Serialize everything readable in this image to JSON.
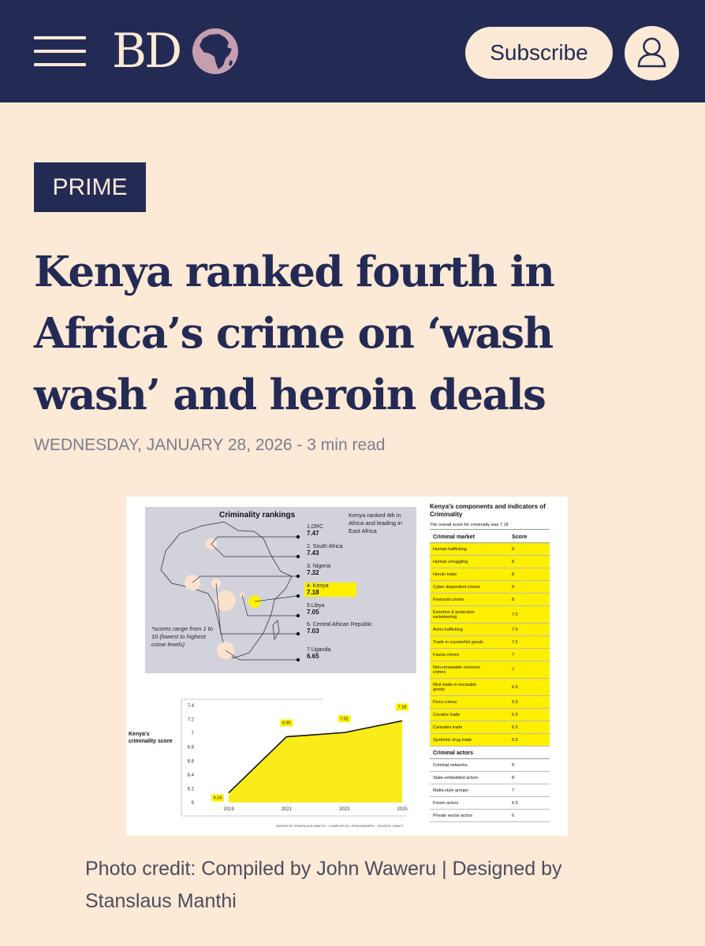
{
  "header": {
    "logo_text": "BD",
    "subscribe_label": "Subscribe",
    "menu_icon": "hamburger-icon",
    "account_icon": "user-icon",
    "colors": {
      "bar": "#232b55",
      "background": "#fce9d6"
    }
  },
  "article": {
    "badge": "PRIME",
    "headline": "Kenya ranked fourth in Africa’s crime on ‘wash wash’ and heroin deals",
    "date": "WEDNESDAY, JANUARY 28, 2026",
    "separator": " - ",
    "read_time": "3 min read",
    "photo_credit": "Photo credit: Compiled by John Waweru | Designed by Stanslaus Manthi"
  },
  "infographic": {
    "map_title": "Criminality rankings",
    "map_note": "Kenya ranked 4th in Africa and leading in East Africa",
    "scores_note": "*scores range from 1 to 10 (lowest to highest crime levels)",
    "rankings": [
      {
        "label": "1.DRC",
        "score": "7.47"
      },
      {
        "label": "2. South Africa",
        "score": "7.43"
      },
      {
        "label": "3. Nigeria",
        "score": "7.32"
      },
      {
        "label": "4. Kenya",
        "score": "7.18"
      },
      {
        "label": "5.Libya",
        "score": "7.05"
      },
      {
        "label": "6. Central African Republic",
        "score": "7.03"
      },
      {
        "label": "7.Uganda",
        "score": "6.65"
      }
    ],
    "line_chart_label": "Kenya's criminality score",
    "design_credit": "DESIGN BY STANSLAUS MANTHI · COMPILED BY JOHN WAWERU · SOURCE: ENACT",
    "table": {
      "title": "Kenya's components and indicators of Criminality",
      "subtitle": "The overall score for criminality was 7.18",
      "market_header": "Criminal market",
      "score_header": "Score",
      "market_rows": [
        {
          "name": "Human trafficking",
          "score": "8"
        },
        {
          "name": "Human smuggling",
          "score": "8"
        },
        {
          "name": "Heroin trade",
          "score": "8"
        },
        {
          "name": "Cyber dependent crimes",
          "score": "8"
        },
        {
          "name": "Financial crimes",
          "score": "8"
        },
        {
          "name": "Extortion & protection racketeering",
          "score": "7.5"
        },
        {
          "name": "Arms trafficking",
          "score": "7.5"
        },
        {
          "name": "Trade in counterfeit goods",
          "score": "7.5"
        },
        {
          "name": "Fauna crimes",
          "score": "7"
        },
        {
          "name": "Non-renewable resource crimes",
          "score": "7"
        },
        {
          "name": "Illicit trade in excisable goods",
          "score": "6.5"
        },
        {
          "name": "Flora crimes",
          "score": "6.5"
        },
        {
          "name": "Cocaine trade",
          "score": "6.5"
        },
        {
          "name": "Cannabis trade",
          "score": "6.5"
        },
        {
          "name": "Synthetic drug trade",
          "score": "6.5"
        }
      ],
      "actors_header": "Criminal actors",
      "actor_rows": [
        {
          "name": "Criminal networks",
          "score": "8"
        },
        {
          "name": "State-embedded actors",
          "score": "8"
        },
        {
          "name": "Mafia-style groups",
          "score": "7"
        },
        {
          "name": "Forein actors",
          "score": "6.5"
        },
        {
          "name": "Private sector actors",
          "score": "6"
        }
      ]
    }
  },
  "chart_data": {
    "type": "area",
    "categories": [
      "2019",
      "2021",
      "2023",
      "2025"
    ],
    "series": [
      {
        "values": [
          6.14,
          6.95,
          7.01,
          7.18
        ]
      }
    ],
    "data_labels": [
      "6.14",
      "6.95",
      "7.01",
      "7.18"
    ],
    "yticks": [
      "7.4",
      "7.2",
      "7",
      "6.8",
      "6.6",
      "6.4",
      "6.2",
      "6"
    ],
    "ylim": [
      6,
      7.4
    ],
    "fill_color": "#f9ec1a"
  }
}
